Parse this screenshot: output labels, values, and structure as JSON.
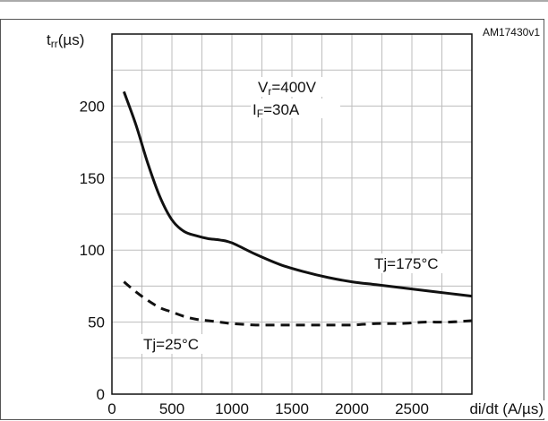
{
  "figure": {
    "ref_id": "AM17430v1"
  },
  "chart_data": {
    "type": "line",
    "title": "",
    "xlabel": "di/dt (A/µs)",
    "ylabel_main": "t",
    "ylabel_sub": "rr",
    "ylabel_unit": "(µs)",
    "xlim": [
      0,
      3000
    ],
    "ylim": [
      0,
      250
    ],
    "x_ticks": [
      0,
      500,
      1000,
      1500,
      2000,
      2500
    ],
    "x_tick_labels": [
      "0",
      "500",
      "1000",
      "1500",
      "2000",
      "2500"
    ],
    "y_ticks": [
      0,
      50,
      100,
      150,
      200
    ],
    "y_tick_labels": [
      "0",
      "50",
      "100",
      "150",
      "200"
    ],
    "grid": true,
    "series": [
      {
        "name": "Tj=175°C",
        "style": "solid",
        "color": "#111111",
        "x": [
          100,
          200,
          300,
          400,
          500,
          600,
          700,
          800,
          900,
          1000,
          1200,
          1400,
          1600,
          1800,
          2000,
          2200,
          2400,
          2600,
          2800,
          3000
        ],
        "y": [
          210,
          187,
          160,
          137,
          121,
          113,
          110,
          108,
          107,
          105,
          97,
          90,
          85,
          81,
          78,
          76,
          74,
          72,
          70,
          68
        ]
      },
      {
        "name": "Tj=25°C",
        "style": "dashed",
        "color": "#111111",
        "x": [
          100,
          200,
          300,
          400,
          500,
          600,
          700,
          800,
          900,
          1000,
          1200,
          1400,
          1600,
          1800,
          2000,
          2200,
          2400,
          2600,
          2800,
          3000
        ],
        "y": [
          78,
          71,
          65,
          60,
          57,
          54,
          52,
          51,
          50,
          49,
          48,
          48,
          48,
          48,
          48,
          49,
          49,
          50,
          50,
          51
        ]
      }
    ],
    "annotations": {
      "vr_main": "V",
      "vr_sub": "r",
      "vr_value": "=400V",
      "if_main": "I",
      "if_sub": "F",
      "if_value": "=30A",
      "label_175": "Tj=175°C",
      "label_25": "Tj=25°C"
    }
  }
}
